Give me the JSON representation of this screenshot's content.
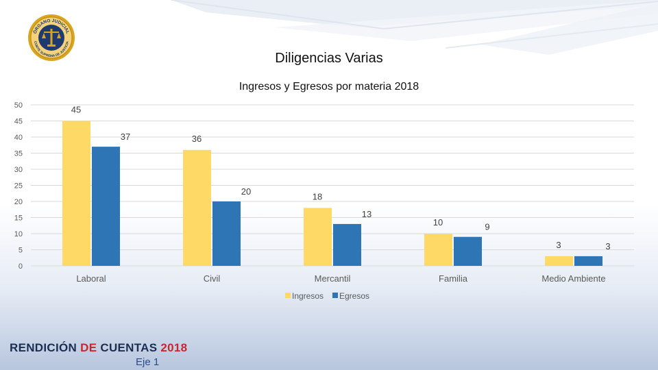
{
  "slide": {
    "title": "Diligencias Varias",
    "footer": {
      "brand_part1": "RENDICIÓN",
      "brand_part2": "DE",
      "brand_part3": "CUENTAS",
      "brand_year": "2018",
      "subtitle": "Eje 1"
    },
    "logo": {
      "top_text": "ÓRGANO JUDICIAL",
      "bottom_text": "CORTE SUPREMA DE JUSTICIA"
    }
  },
  "colors": {
    "ingresos": "#ffd966",
    "egresos": "#2e75b6",
    "gold": "#d9a520",
    "navy": "#1f3a6e"
  },
  "chart_data": {
    "type": "bar",
    "title": "Ingresos y Egresos por materia 2018",
    "categories": [
      "Laboral",
      "Civil",
      "Mercantil",
      "Familia",
      "Medio Ambiente"
    ],
    "series": [
      {
        "name": "Ingresos",
        "values": [
          45,
          36,
          18,
          10,
          3
        ]
      },
      {
        "name": "Egresos",
        "values": [
          37,
          20,
          13,
          9,
          3
        ]
      }
    ],
    "ylim": [
      0,
      50
    ],
    "yticks": [
      0,
      5,
      10,
      15,
      20,
      25,
      30,
      35,
      40,
      45,
      50
    ],
    "xlabel": "",
    "ylabel": "",
    "grid": true,
    "legend": "bottom"
  }
}
